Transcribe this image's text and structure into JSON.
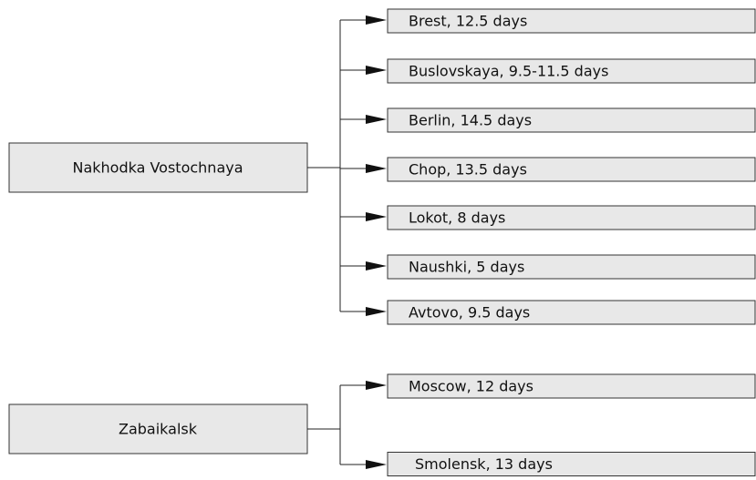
{
  "groups": [
    {
      "source": "Nakhodka Vostochnaya",
      "targets": [
        "Brest, 12.5 days",
        "Buslovskaya, 9.5-11.5 days",
        "Berlin, 14.5 days",
        "Chop, 13.5 days",
        "Lokot, 8 days",
        "Naushki, 5 days",
        "Avtovo, 9.5 days"
      ]
    },
    {
      "source": "Zabaikalsk",
      "targets": [
        "Moscow, 12 days",
        "Smolensk, 13 days"
      ]
    }
  ]
}
